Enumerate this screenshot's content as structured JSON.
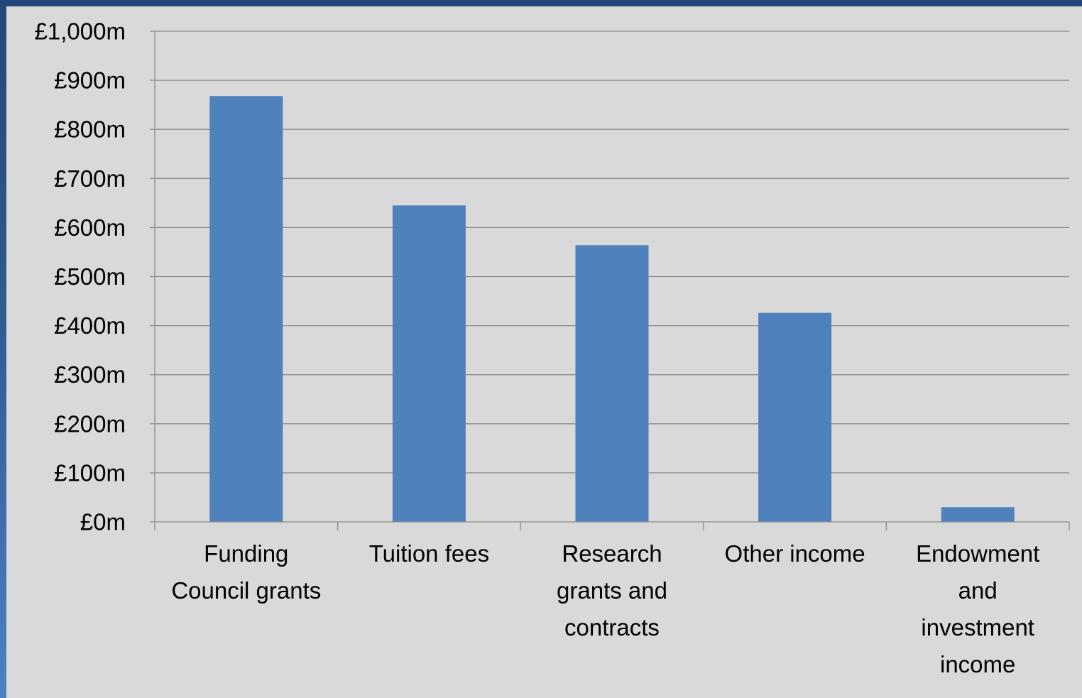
{
  "chart_data": {
    "type": "bar",
    "categories": [
      [
        "Funding",
        "Council grants"
      ],
      [
        "Tuition fees"
      ],
      [
        "Research",
        "grants and",
        "contracts"
      ],
      [
        "Other income"
      ],
      [
        "Endowment",
        "and",
        "investment",
        "income"
      ]
    ],
    "values": [
      868,
      645,
      564,
      426,
      30
    ],
    "yticks": [
      "£0m",
      "£100m",
      "£200m",
      "£300m",
      "£400m",
      "£500m",
      "£600m",
      "£700m",
      "£800m",
      "£900m",
      "£1,000m"
    ],
    "ylim": [
      0,
      1000
    ],
    "ytick_step": 100,
    "grid": true,
    "legend": "none",
    "bar_color": "#4f81bd",
    "grid_color": "#8c8c8c",
    "background_color": "#d9d9d9"
  }
}
